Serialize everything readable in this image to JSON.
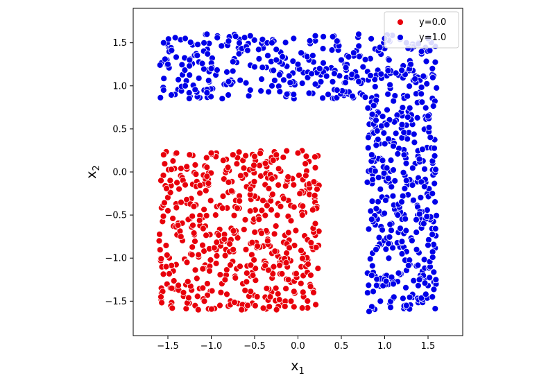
{
  "chart_data": {
    "type": "scatter",
    "title": "",
    "xlabel": "x",
    "xlabel_sub": "1",
    "ylabel": "x",
    "ylabel_sub": "2",
    "xlim": [
      -1.9,
      1.9
    ],
    "ylim": [
      -1.9,
      1.9
    ],
    "grid": false,
    "legend_placement": "top-right",
    "x_ticks": [
      -1.5,
      -1.0,
      -0.5,
      0.0,
      0.5,
      1.0,
      1.5
    ],
    "x_tick_labels": [
      "−1.5",
      "−1.0",
      "−0.5",
      "0.0",
      "0.5",
      "1.0",
      "1.5"
    ],
    "y_ticks": [
      -1.5,
      -1.0,
      -0.5,
      0.0,
      0.5,
      1.0,
      1.5
    ],
    "y_tick_labels": [
      "−1.5",
      "−1.0",
      "−0.5",
      "0.0",
      "0.5",
      "1.0",
      "1.5"
    ],
    "series": [
      {
        "name": "y=0.0",
        "color": "#e8000b",
        "region": {
          "x": [
            -1.6,
            0.25
          ],
          "y": [
            -1.6,
            0.25
          ]
        },
        "points": [
          [
            -1.55,
            0.2
          ],
          [
            -1.4,
            0.22
          ],
          [
            -1.25,
            0.2
          ],
          [
            -1.0,
            0.22
          ],
          [
            -0.75,
            0.2
          ],
          [
            -0.5,
            0.18
          ],
          [
            -0.25,
            0.2
          ],
          [
            0.0,
            0.22
          ],
          [
            0.2,
            0.05
          ],
          [
            -1.58,
            -0.1
          ],
          [
            -1.3,
            -0.15
          ],
          [
            -1.05,
            -0.05
          ],
          [
            -0.8,
            -0.12
          ],
          [
            -0.55,
            -0.2
          ],
          [
            -0.3,
            -0.08
          ],
          [
            -0.05,
            -0.15
          ],
          [
            0.22,
            -0.2
          ],
          [
            -1.5,
            -0.45
          ],
          [
            -1.2,
            -0.4
          ],
          [
            -0.95,
            -0.5
          ],
          [
            -0.7,
            -0.42
          ],
          [
            -0.45,
            -0.55
          ],
          [
            -0.2,
            -0.4
          ],
          [
            0.05,
            -0.5
          ],
          [
            0.2,
            -0.6
          ],
          [
            -1.6,
            -0.8
          ],
          [
            -1.35,
            -0.75
          ],
          [
            -1.1,
            -0.85
          ],
          [
            -0.85,
            -0.78
          ],
          [
            -0.6,
            -0.9
          ],
          [
            -0.35,
            -0.8
          ],
          [
            -0.1,
            -0.88
          ],
          [
            0.15,
            -0.82
          ],
          [
            -1.52,
            -1.1
          ],
          [
            -1.28,
            -1.05
          ],
          [
            -1.02,
            -1.15
          ],
          [
            -0.78,
            -1.08
          ],
          [
            -0.52,
            -1.2
          ],
          [
            -0.28,
            -1.1
          ],
          [
            -0.02,
            -1.18
          ],
          [
            0.23,
            -1.12
          ],
          [
            -1.58,
            -1.45
          ],
          [
            -1.32,
            -1.4
          ],
          [
            -1.08,
            -1.5
          ],
          [
            -0.82,
            -1.42
          ],
          [
            -0.58,
            -1.55
          ],
          [
            -0.32,
            -1.45
          ],
          [
            -0.08,
            -1.5
          ],
          [
            0.18,
            -1.4
          ],
          [
            -1.45,
            -1.58
          ],
          [
            -1.15,
            -1.6
          ],
          [
            -0.9,
            -1.55
          ],
          [
            -0.65,
            -1.6
          ],
          [
            -0.4,
            -1.58
          ],
          [
            -0.15,
            -1.56
          ]
        ]
      },
      {
        "name": "y=1.0",
        "color": "#0000e8",
        "region_top": {
          "x": [
            -1.6,
            1.6
          ],
          "y": [
            0.85,
            1.6
          ]
        },
        "region_right": {
          "x": [
            0.8,
            1.6
          ],
          "y": [
            -1.6,
            1.6
          ]
        },
        "points": [
          [
            -1.55,
            1.5
          ],
          [
            -1.3,
            1.55
          ],
          [
            -1.05,
            1.6
          ],
          [
            -0.8,
            1.52
          ],
          [
            -0.55,
            1.58
          ],
          [
            -0.3,
            1.5
          ],
          [
            -0.05,
            1.55
          ],
          [
            0.2,
            1.58
          ],
          [
            0.45,
            1.52
          ],
          [
            0.7,
            1.6
          ],
          [
            1.0,
            1.55
          ],
          [
            1.25,
            1.5
          ],
          [
            1.5,
            1.55
          ],
          [
            -1.5,
            1.25
          ],
          [
            -1.25,
            1.3
          ],
          [
            -1.0,
            1.2
          ],
          [
            -0.75,
            1.28
          ],
          [
            -0.5,
            1.22
          ],
          [
            -0.25,
            1.3
          ],
          [
            0.0,
            1.25
          ],
          [
            0.25,
            1.2
          ],
          [
            0.5,
            1.3
          ],
          [
            0.75,
            1.22
          ],
          [
            1.05,
            1.3
          ],
          [
            1.3,
            1.25
          ],
          [
            1.55,
            1.2
          ],
          [
            -1.55,
            0.95
          ],
          [
            -1.3,
            1.0
          ],
          [
            -1.05,
            0.92
          ],
          [
            -0.8,
            1.05
          ],
          [
            -0.55,
            0.95
          ],
          [
            -0.3,
            1.0
          ],
          [
            -0.05,
            0.9
          ],
          [
            0.2,
            1.02
          ],
          [
            0.45,
            0.95
          ],
          [
            0.7,
            1.05
          ],
          [
            0.9,
            0.6
          ],
          [
            1.2,
            0.55
          ],
          [
            1.5,
            0.65
          ],
          [
            0.85,
            0.2
          ],
          [
            1.1,
            0.3
          ],
          [
            1.4,
            0.15
          ],
          [
            0.95,
            -0.2
          ],
          [
            1.25,
            -0.1
          ],
          [
            1.55,
            -0.25
          ],
          [
            0.85,
            -0.55
          ],
          [
            1.15,
            -0.5
          ],
          [
            1.45,
            -0.6
          ],
          [
            0.9,
            -0.9
          ],
          [
            1.2,
            -0.95
          ],
          [
            1.5,
            -0.85
          ],
          [
            0.85,
            -1.2
          ],
          [
            1.1,
            -1.3
          ],
          [
            1.4,
            -1.25
          ],
          [
            0.95,
            -1.5
          ],
          [
            1.25,
            -1.55
          ],
          [
            1.55,
            -1.45
          ],
          [
            0.82,
            -1.62
          ]
        ]
      }
    ]
  }
}
